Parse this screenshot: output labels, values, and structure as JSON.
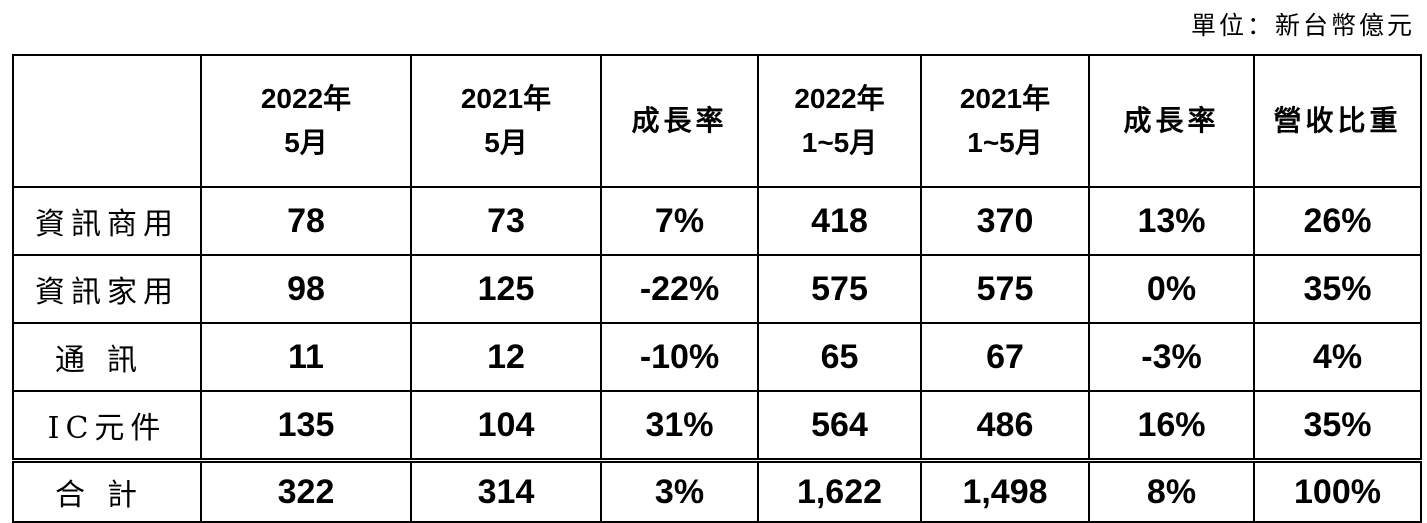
{
  "unit": "單位：新台幣億元",
  "table": {
    "columns": [
      [
        "2022年",
        "5月"
      ],
      [
        "2021年",
        "5月"
      ],
      [
        "成長率"
      ],
      [
        "2022年",
        "1~5月"
      ],
      [
        "2021年",
        "1~5月"
      ],
      [
        "成長率"
      ],
      [
        "營收比重"
      ]
    ],
    "rows": [
      [
        "資訊商用",
        "78",
        "73",
        "7%",
        "418",
        "370",
        "13%",
        "26%"
      ],
      [
        "資訊家用",
        "98",
        "125",
        "-22%",
        "575",
        "575",
        "0%",
        "35%"
      ],
      [
        "通訊",
        "11",
        "12",
        "-10%",
        "65",
        "67",
        "-3%",
        "4%"
      ],
      [
        "IC元件",
        "135",
        "104",
        "31%",
        "564",
        "486",
        "16%",
        "35%"
      ],
      [
        "合計",
        "322",
        "314",
        "3%",
        "1,622",
        "1,498",
        "8%",
        "100%"
      ]
    ]
  }
}
